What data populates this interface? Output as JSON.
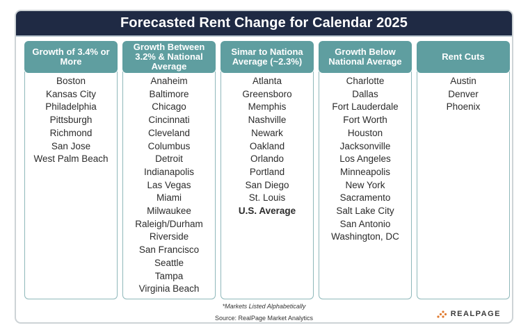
{
  "title": "Forecasted Rent Change for Calendar 2025",
  "columns": [
    {
      "header": "Growth of 3.4% or More",
      "items": [
        "Boston",
        "Kansas City",
        "Philadelphia",
        "Pittsburgh",
        "Richmond",
        "San Jose",
        "West Palm Beach"
      ]
    },
    {
      "header": "Growth Between 3.2% & National Average",
      "items": [
        "Anaheim",
        "Baltimore",
        "Chicago",
        "Cincinnati",
        "Cleveland",
        "Columbus",
        "Detroit",
        "Indianapolis",
        "Las Vegas",
        "Miami",
        "Milwaukee",
        "Raleigh/Durham",
        "Riverside",
        "San Francisco",
        "Seattle",
        "Tampa",
        "Virginia Beach"
      ]
    },
    {
      "header": "Simar to Nationa Average (~2.3%)",
      "items": [
        "Atlanta",
        "Greensboro",
        "Memphis",
        "Nashville",
        "Newark",
        "Oakland",
        "Orlando",
        "Portland",
        "San Diego",
        "St. Louis"
      ],
      "highlight": "U.S. Average"
    },
    {
      "header": "Growth Below National Average",
      "items": [
        "Charlotte",
        "Dallas",
        "Fort Lauderdale",
        "Fort Worth",
        "Houston",
        "Jacksonville",
        "Los Angeles",
        "Minneapolis",
        "New York",
        "Sacramento",
        "Salt Lake City",
        "San Antonio",
        "Washington, DC"
      ]
    },
    {
      "header": "Rent Cuts",
      "items": [
        "Austin",
        "Denver",
        "Phoenix"
      ]
    }
  ],
  "footnote": "*Markets Listed Alphabetically",
  "source": "Source: RealPage Market Analytics",
  "logo": {
    "text": "REALPAGE",
    "icon": "realpage-dots-icon"
  },
  "colors": {
    "title_bg": "#1f2a44",
    "header_bg": "#5f9ea0",
    "border": "#8fb8ba"
  }
}
